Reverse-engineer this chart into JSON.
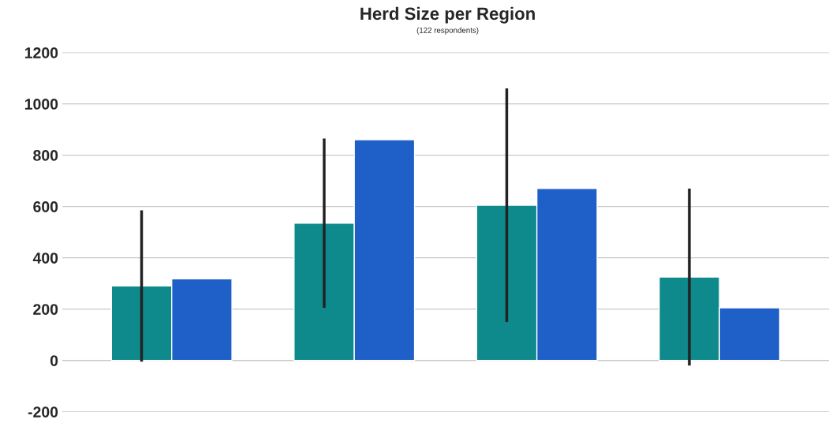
{
  "chart_data": {
    "type": "bar",
    "title": "Herd Size per Region",
    "subtitle": "(122 respondents)",
    "categories": [
      null,
      null,
      null,
      null
    ],
    "series": [
      {
        "color": "#0f8a8c",
        "values": [
          290,
          535,
          605,
          325
        ],
        "errors": [
          295,
          330,
          455,
          345
        ]
      },
      {
        "color": "#1f5fc8",
        "values": [
          318,
          860,
          670,
          205
        ]
      }
    ],
    "ylim": [
      -200,
      1200
    ],
    "yticks": [
      -200,
      0,
      200,
      400,
      600,
      800,
      1000,
      1200
    ],
    "grid": "y"
  }
}
